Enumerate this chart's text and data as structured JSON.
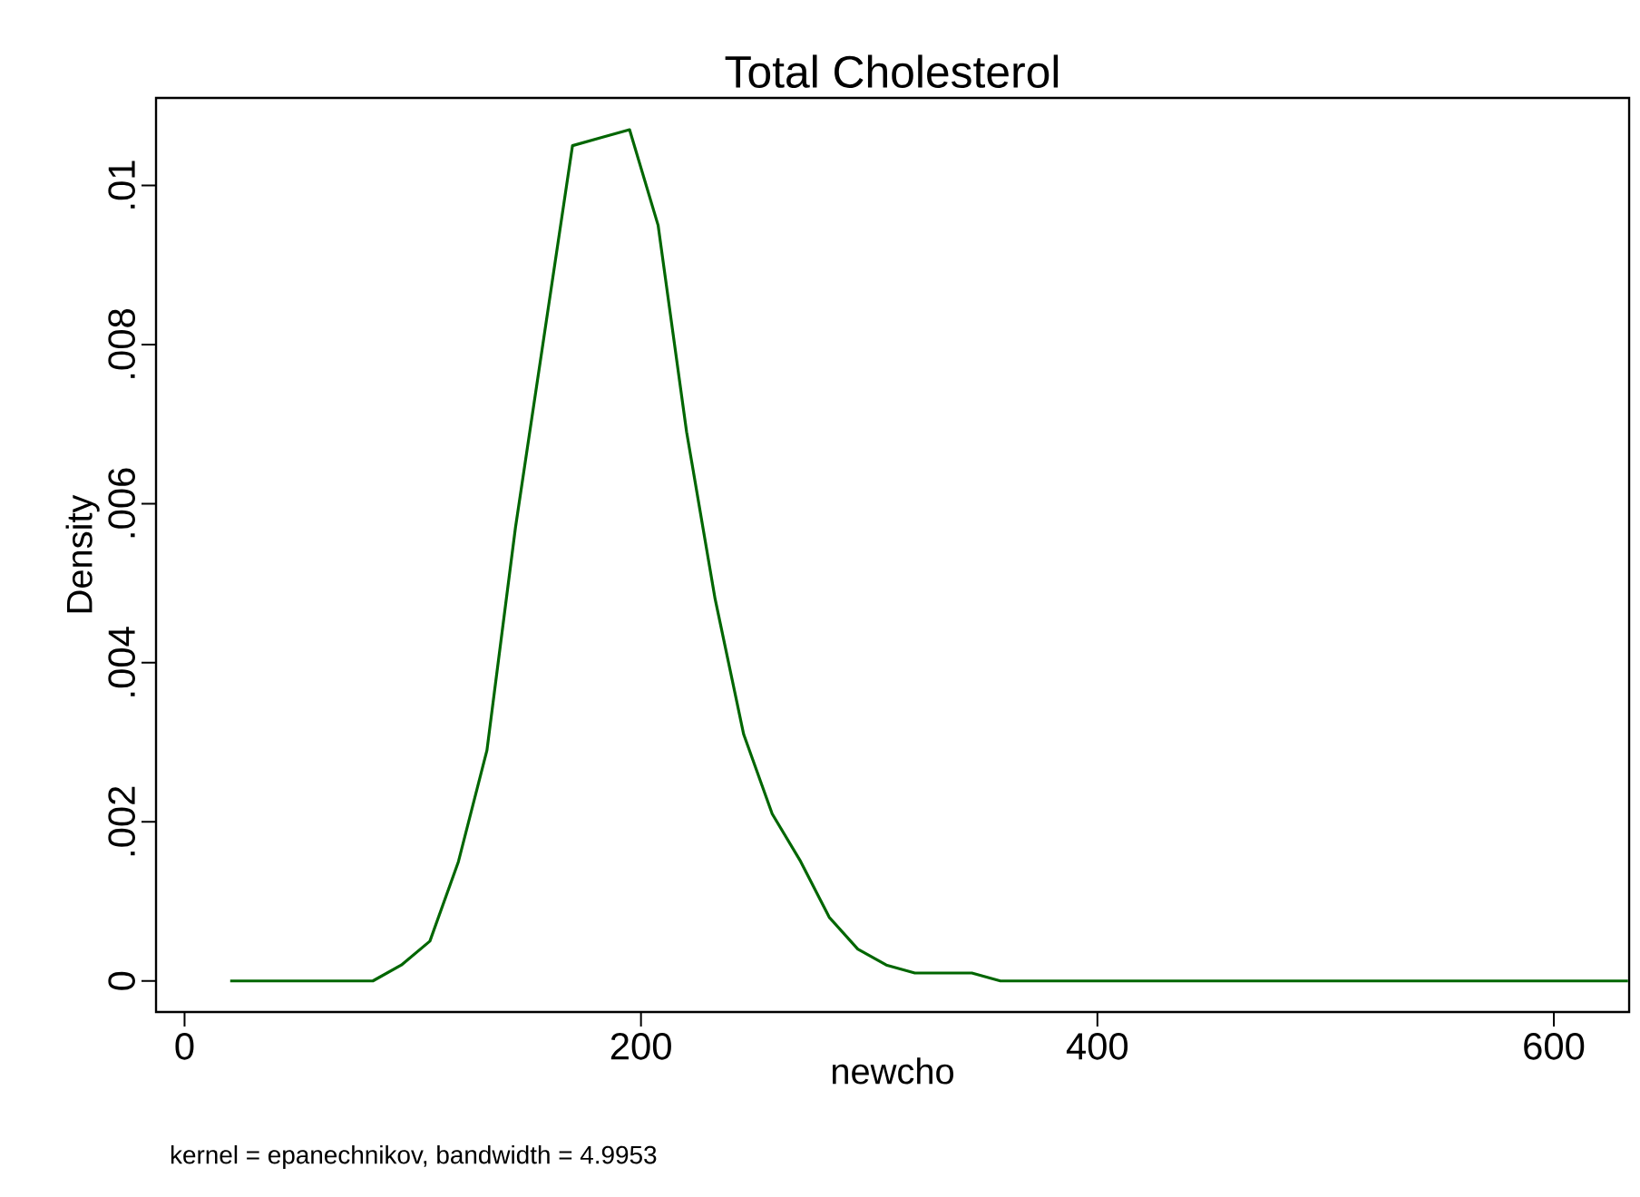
{
  "chart_data": {
    "type": "line",
    "title": "Total Cholesterol",
    "xlabel": "newcho",
    "ylabel": "Density",
    "annotations": [
      "kernel = epanechnikov, bandwidth = 4.9953"
    ],
    "xlim": [
      -12.5,
      633
    ],
    "ylim": [
      -0.00039,
      0.0111
    ],
    "xticks": [
      0,
      200,
      400,
      600
    ],
    "yticks": [
      0,
      {
        "value": 0.002,
        "label": ".002"
      },
      {
        "value": 0.004,
        "label": ".004"
      },
      {
        "value": 0.006,
        "label": ".006"
      },
      {
        "value": 0.008,
        "label": ".008"
      },
      {
        "value": 0.01,
        "label": ".01"
      }
    ],
    "marker": "none",
    "line_style": "solid",
    "series": [
      {
        "color": "#006600",
        "x": [
          20,
          32.5,
          45,
          57.5,
          70,
          82.5,
          95,
          107.5,
          120,
          132.5,
          145,
          157.5,
          170,
          182.5,
          195,
          207.5,
          220,
          232.5,
          245,
          257.5,
          270,
          282.5,
          295,
          307.5,
          320,
          332.5,
          345,
          357.5,
          370,
          382.5,
          395,
          407.5,
          420,
          432.5,
          445,
          457.5,
          470,
          482.5,
          495,
          507.5,
          520,
          532.5,
          545,
          557.5,
          570,
          582.5,
          595,
          607.5,
          620,
          632.5
        ],
        "values": [
          0,
          0,
          0,
          0,
          0,
          0,
          0.0002,
          0.0005,
          0.0015,
          0.0029,
          0.0057,
          0.0081,
          0.0105,
          0.0106,
          0.0107,
          0.0095,
          0.0069,
          0.0048,
          0.0031,
          0.0021,
          0.0015,
          0.0008,
          0.0004,
          0.0002,
          0.0001,
          0.0001,
          0.0001,
          0,
          0,
          0,
          0,
          0,
          0,
          0,
          0,
          0,
          0,
          0,
          0,
          0,
          0,
          0,
          0,
          0,
          0,
          0,
          0,
          0,
          0,
          0
        ]
      }
    ]
  }
}
